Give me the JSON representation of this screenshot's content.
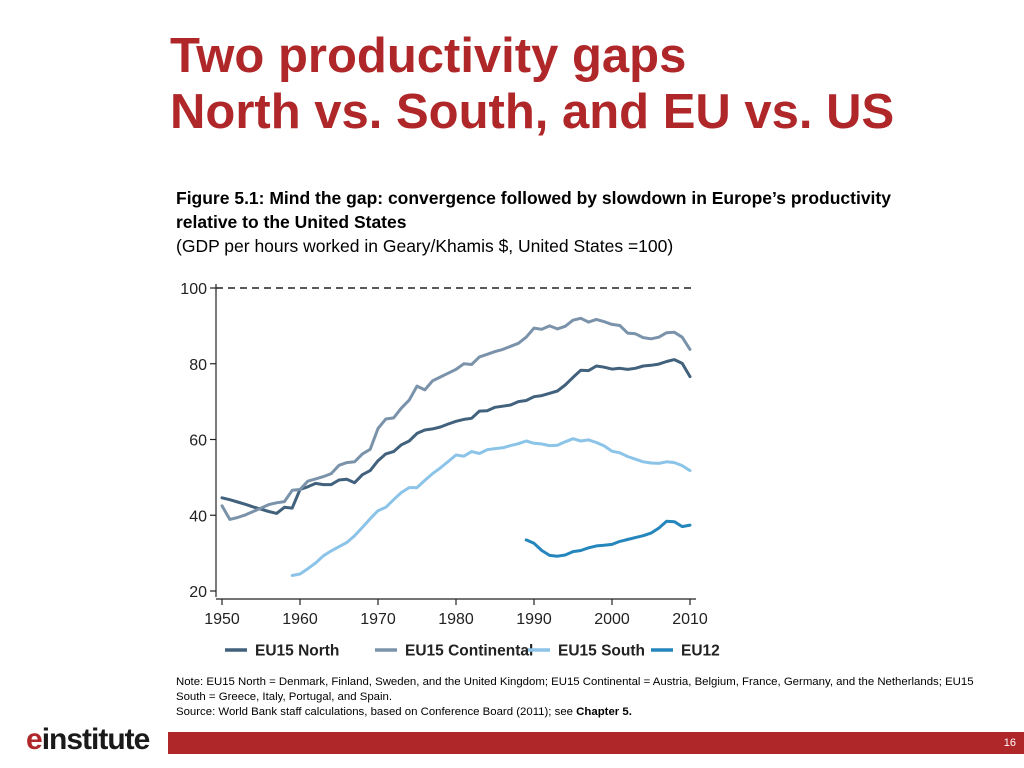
{
  "slide": {
    "title_line1": "Two productivity gaps",
    "title_line2": "North vs. South, and EU vs. US",
    "figure_title": "Figure 5.1: Mind the gap: convergence followed by slowdown in Europe’s productivity relative to the United States",
    "figure_subtitle": "(GDP per hours worked in Geary/Khamis $, United States =100)",
    "note_text": "Note: EU15 North = Denmark, Finland, Sweden, and the United Kingdom; EU15 Continental = Austria, Belgium, France, Germany, and the Netherlands; EU15 South = Greece, Italy, Portugal, and Spain.",
    "source_text": "Source: World Bank staff calculations, based on Conference Board (2011); see ",
    "source_link": "Chapter 5.",
    "logo_e": "e",
    "logo_rest": "institute",
    "page_number": "16"
  },
  "colors": {
    "title": "#b0272a",
    "footer_bar": "#b0272a",
    "eu15_north": "#41617c",
    "eu15_continental": "#7b93aa",
    "eu15_south": "#8bc4e8",
    "eu12": "#2586bd"
  },
  "chart_data": {
    "type": "line",
    "title": "",
    "xlabel": "",
    "ylabel": "",
    "xlim": [
      1950,
      2010
    ],
    "ylim": [
      20,
      100
    ],
    "xticks": [
      1950,
      1960,
      1970,
      1980,
      1990,
      2000,
      2010
    ],
    "yticks": [
      20,
      40,
      60,
      80,
      100
    ],
    "reference_line": {
      "y": 100,
      "style": "dashed"
    },
    "grid": false,
    "legend_position": "bottom",
    "series": [
      {
        "name": "EU15 North",
        "color": "#41617c",
        "x": [
          1950,
          1951,
          1952,
          1953,
          1954,
          1955,
          1956,
          1957,
          1958,
          1959,
          1960,
          1961,
          1962,
          1963,
          1964,
          1965,
          1966,
          1967,
          1968,
          1969,
          1970,
          1971,
          1972,
          1973,
          1974,
          1975,
          1976,
          1977,
          1978,
          1979,
          1980,
          1981,
          1982,
          1983,
          1984,
          1985,
          1986,
          1987,
          1988,
          1989,
          1990,
          1991,
          1992,
          1993,
          1994,
          1995,
          1996,
          1997,
          1998,
          1999,
          2000,
          2001,
          2002,
          2003,
          2004,
          2005,
          2006,
          2007,
          2008,
          2009,
          2010
        ],
        "values": [
          44.6,
          44.1,
          43.5,
          42.9,
          42.2,
          41.6,
          41.0,
          40.5,
          42.1,
          41.9,
          46.8,
          47.5,
          48.4,
          48.1,
          48.1,
          49.3,
          49.5,
          48.6,
          50.7,
          51.8,
          54.4,
          56.2,
          56.8,
          58.6,
          59.6,
          61.6,
          62.5,
          62.8,
          63.3,
          64.1,
          64.8,
          65.3,
          65.6,
          67.5,
          67.6,
          68.5,
          68.8,
          69.1,
          70.0,
          70.3,
          71.3,
          71.6,
          72.2,
          72.8,
          74.4,
          76.4,
          78.3,
          78.2,
          79.4,
          79.1,
          78.6,
          78.8,
          78.5,
          78.8,
          79.4,
          79.6,
          79.9,
          80.6,
          81.1,
          80.1,
          76.6
        ]
      },
      {
        "name": "EU15 Continental",
        "color": "#7b93aa",
        "x": [
          1950,
          1951,
          1952,
          1953,
          1954,
          1955,
          1956,
          1957,
          1958,
          1959,
          1960,
          1961,
          1962,
          1963,
          1964,
          1965,
          1966,
          1967,
          1968,
          1969,
          1970,
          1971,
          1972,
          1973,
          1974,
          1975,
          1976,
          1977,
          1978,
          1979,
          1980,
          1981,
          1982,
          1983,
          1984,
          1985,
          1986,
          1987,
          1988,
          1989,
          1990,
          1991,
          1992,
          1993,
          1994,
          1995,
          1996,
          1997,
          1998,
          1999,
          2000,
          2001,
          2002,
          2003,
          2004,
          2005,
          2006,
          2007,
          2008,
          2009,
          2010
        ],
        "values": [
          42.5,
          38.9,
          39.4,
          40.1,
          41.0,
          41.9,
          42.8,
          43.3,
          43.6,
          46.6,
          46.8,
          49.0,
          49.6,
          50.2,
          51.0,
          53.2,
          53.9,
          54.1,
          56.2,
          57.4,
          62.9,
          65.4,
          65.7,
          68.3,
          70.4,
          74.1,
          73.1,
          75.5,
          76.5,
          77.5,
          78.5,
          80.0,
          79.8,
          81.8,
          82.5,
          83.2,
          83.8,
          84.6,
          85.4,
          87.0,
          89.4,
          89.1,
          90.0,
          89.2,
          89.9,
          91.5,
          92.0,
          91.0,
          91.7,
          91.1,
          90.4,
          90.1,
          88.1,
          87.9,
          86.9,
          86.6,
          87.0,
          88.2,
          88.3,
          87.0,
          83.8
        ]
      },
      {
        "name": "EU15 South",
        "color": "#8bc4e8",
        "x": [
          1959,
          1960,
          1961,
          1962,
          1963,
          1964,
          1965,
          1966,
          1967,
          1968,
          1969,
          1970,
          1971,
          1972,
          1973,
          1974,
          1975,
          1976,
          1977,
          1978,
          1979,
          1980,
          1981,
          1982,
          1983,
          1984,
          1985,
          1986,
          1987,
          1988,
          1989,
          1990,
          1991,
          1992,
          1993,
          1994,
          1995,
          1996,
          1997,
          1998,
          1999,
          2000,
          2001,
          2002,
          2003,
          2004,
          2005,
          2006,
          2007,
          2008,
          2009,
          2010
        ],
        "values": [
          24.1,
          24.5,
          25.9,
          27.4,
          29.3,
          30.6,
          31.7,
          32.8,
          34.6,
          36.8,
          39.1,
          41.2,
          42.1,
          44.1,
          46.0,
          47.3,
          47.3,
          49.2,
          51.0,
          52.5,
          54.2,
          55.9,
          55.6,
          56.8,
          56.3,
          57.3,
          57.6,
          57.8,
          58.4,
          58.9,
          59.6,
          59.0,
          58.8,
          58.4,
          58.5,
          59.4,
          60.2,
          59.6,
          59.9,
          59.2,
          58.3,
          56.9,
          56.5,
          55.5,
          54.8,
          54.1,
          53.8,
          53.7,
          54.1,
          53.9,
          53.1,
          51.8
        ]
      },
      {
        "name": "EU12",
        "color": "#2586bd",
        "x": [
          1989,
          1990,
          1991,
          1992,
          1993,
          1994,
          1995,
          1996,
          1997,
          1998,
          1999,
          2000,
          2001,
          2002,
          2003,
          2004,
          2005,
          2006,
          2007,
          2008,
          2009,
          2010
        ],
        "values": [
          33.5,
          32.6,
          30.7,
          29.4,
          29.2,
          29.5,
          30.4,
          30.7,
          31.4,
          31.9,
          32.1,
          32.3,
          33.1,
          33.6,
          34.1,
          34.6,
          35.3,
          36.6,
          38.4,
          38.3,
          37.0,
          37.4
        ]
      }
    ]
  }
}
